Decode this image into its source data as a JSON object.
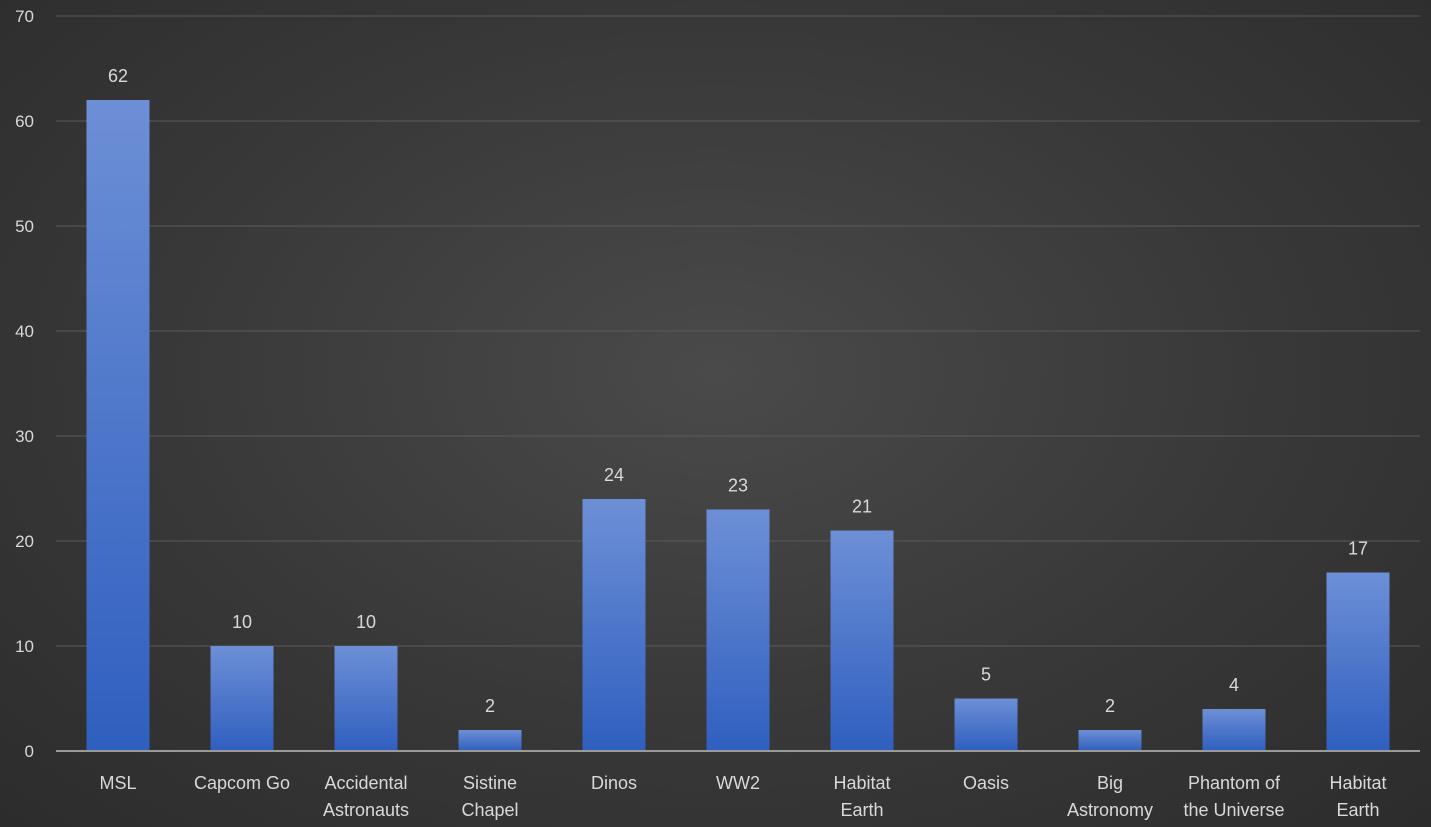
{
  "colors": {
    "bar_top": "#6d8fd6",
    "bar_bottom": "#2f5fbf",
    "text": "#d9d9d9",
    "grid": "#5a5a5a"
  },
  "chart_data": {
    "type": "bar",
    "title": "",
    "xlabel": "",
    "ylabel": "",
    "ylim": [
      0,
      70
    ],
    "yticks": [
      0,
      10,
      20,
      30,
      40,
      50,
      60,
      70
    ],
    "grid": true,
    "legend": "none",
    "categories": [
      [
        "MSL"
      ],
      [
        "Capcom Go"
      ],
      [
        "Accidental",
        "Astronauts"
      ],
      [
        "Sistine",
        "Chapel"
      ],
      [
        "Dinos"
      ],
      [
        "WW2"
      ],
      [
        "Habitat",
        "Earth"
      ],
      [
        "Oasis"
      ],
      [
        "Big",
        "Astronomy"
      ],
      [
        "Phantom of",
        "the Universe"
      ],
      [
        "Habitat",
        "Earth"
      ]
    ],
    "values": [
      62,
      10,
      10,
      2,
      24,
      23,
      21,
      5,
      2,
      4,
      17
    ]
  }
}
